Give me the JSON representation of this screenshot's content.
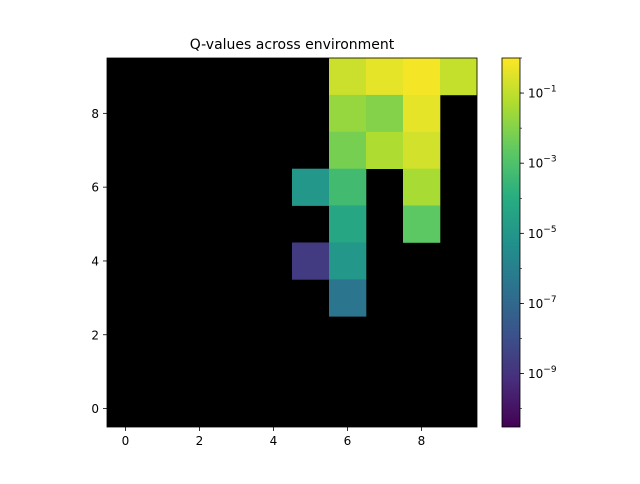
{
  "chart_data": {
    "type": "heatmap",
    "title": "Q-values across environment",
    "xlabel": "",
    "ylabel": "",
    "grid": false,
    "x_range": [
      -0.5,
      9.5
    ],
    "y_range": [
      -0.5,
      9.5
    ],
    "x_ticks": [
      0,
      2,
      4,
      6,
      8
    ],
    "y_ticks": [
      0,
      2,
      4,
      6,
      8
    ],
    "background_color": "#000000",
    "colorscale": "viridis",
    "color_scale_type": "log",
    "colorbar_range": [
      3e-11,
      1.0
    ],
    "colorbar_ticks": [
      {
        "value": 0.1,
        "base": "10",
        "exp": "−1"
      },
      {
        "value": 0.001,
        "base": "10",
        "exp": "−3"
      },
      {
        "value": 1e-05,
        "base": "10",
        "exp": "−5"
      },
      {
        "value": 1e-07,
        "base": "10",
        "exp": "−7"
      },
      {
        "value": 1e-09,
        "base": "10",
        "exp": "−9"
      }
    ],
    "cells": [
      {
        "x": 6,
        "y": 9,
        "value": 0.15
      },
      {
        "x": 7,
        "y": 9,
        "value": 0.4
      },
      {
        "x": 8,
        "y": 9,
        "value": 0.7
      },
      {
        "x": 9,
        "y": 9,
        "value": 0.12
      },
      {
        "x": 6,
        "y": 8,
        "value": 0.02
      },
      {
        "x": 7,
        "y": 8,
        "value": 0.01
      },
      {
        "x": 8,
        "y": 8,
        "value": 0.4
      },
      {
        "x": 6,
        "y": 7,
        "value": 0.006
      },
      {
        "x": 7,
        "y": 7,
        "value": 0.05
      },
      {
        "x": 8,
        "y": 7,
        "value": 0.2
      },
      {
        "x": 5,
        "y": 6,
        "value": 1e-05
      },
      {
        "x": 6,
        "y": 6,
        "value": 0.0005
      },
      {
        "x": 8,
        "y": 6,
        "value": 0.04
      },
      {
        "x": 6,
        "y": 5,
        "value": 5e-05
      },
      {
        "x": 8,
        "y": 5,
        "value": 0.002
      },
      {
        "x": 5,
        "y": 4,
        "value": 2e-09
      },
      {
        "x": 6,
        "y": 4,
        "value": 1e-05
      },
      {
        "x": 6,
        "y": 3,
        "value": 4e-07
      }
    ]
  }
}
